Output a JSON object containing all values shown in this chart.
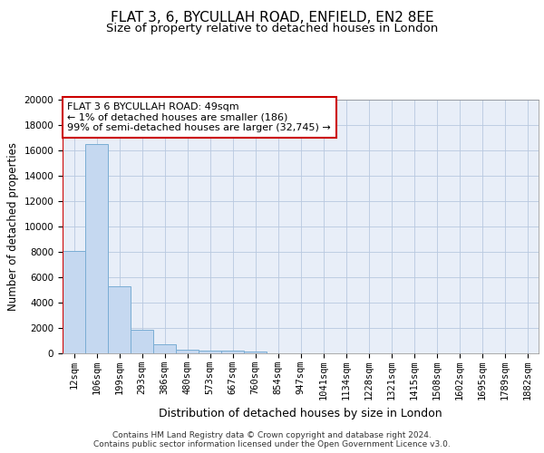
{
  "title": "FLAT 3, 6, BYCULLAH ROAD, ENFIELD, EN2 8EE",
  "subtitle": "Size of property relative to detached houses in London",
  "xlabel": "Distribution of detached houses by size in London",
  "ylabel": "Number of detached properties",
  "categories": [
    "12sqm",
    "106sqm",
    "199sqm",
    "293sqm",
    "386sqm",
    "480sqm",
    "573sqm",
    "667sqm",
    "760sqm",
    "854sqm",
    "947sqm",
    "1041sqm",
    "1134sqm",
    "1228sqm",
    "1321sqm",
    "1415sqm",
    "1508sqm",
    "1602sqm",
    "1695sqm",
    "1789sqm",
    "1882sqm"
  ],
  "values": [
    8100,
    16500,
    5300,
    1850,
    750,
    300,
    230,
    200,
    160,
    0,
    0,
    0,
    0,
    0,
    0,
    0,
    0,
    0,
    0,
    0,
    0
  ],
  "bar_color": "#c5d8f0",
  "bar_edge_color": "#7aadd4",
  "vline_color": "#cc0000",
  "annotation_text": "FLAT 3 6 BYCULLAH ROAD: 49sqm\n← 1% of detached houses are smaller (186)\n99% of semi-detached houses are larger (32,745) →",
  "annotation_box_color": "#ffffff",
  "annotation_box_edge": "#cc0000",
  "ylim": [
    0,
    20000
  ],
  "yticks": [
    0,
    2000,
    4000,
    6000,
    8000,
    10000,
    12000,
    14000,
    16000,
    18000,
    20000
  ],
  "background_color": "#e8eef8",
  "footer_text": "Contains HM Land Registry data © Crown copyright and database right 2024.\nContains public sector information licensed under the Open Government Licence v3.0.",
  "title_fontsize": 11,
  "subtitle_fontsize": 9.5,
  "ylabel_fontsize": 8.5,
  "xlabel_fontsize": 9,
  "tick_fontsize": 7.5,
  "footer_fontsize": 6.5
}
